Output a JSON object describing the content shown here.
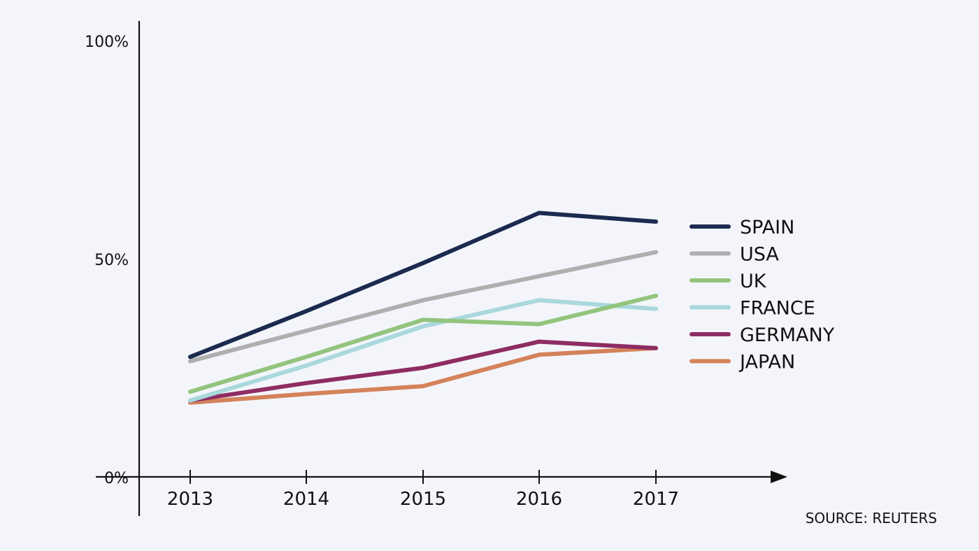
{
  "chart_data": {
    "type": "line",
    "title": "",
    "xlabel": "",
    "ylabel": "",
    "x": [
      "2013",
      "2014",
      "2015",
      "2016",
      "2017"
    ],
    "ylim": [
      0,
      100
    ],
    "yticks": [
      {
        "value": 0,
        "label": "0%"
      },
      {
        "value": 50,
        "label": "50%"
      },
      {
        "value": 100,
        "label": "100%"
      }
    ],
    "legend_position": "right",
    "series": [
      {
        "name": "SPAIN",
        "color": "#1b2a4e",
        "values": [
          27.5,
          38,
          49,
          60.5,
          58.5
        ]
      },
      {
        "name": "USA",
        "color": "#aeafae",
        "values": [
          26.5,
          33.5,
          40.5,
          46,
          51.5
        ]
      },
      {
        "name": "UK",
        "color": "#93c47d",
        "values": [
          19.5,
          27.5,
          36,
          35,
          41.5
        ]
      },
      {
        "name": "FRANCE",
        "color": "#a9d8dd",
        "values": [
          17.5,
          25.5,
          34.5,
          40.5,
          38.5
        ]
      },
      {
        "name": "GERMANY",
        "color": "#8e2d63",
        "values": [
          17.5,
          21.5,
          25,
          31,
          29.5
        ]
      },
      {
        "name": "JAPAN",
        "color": "#d4825a",
        "values": [
          17,
          19,
          20.8,
          28,
          29.5
        ]
      }
    ],
    "source": "SOURCE: REUTERS"
  }
}
